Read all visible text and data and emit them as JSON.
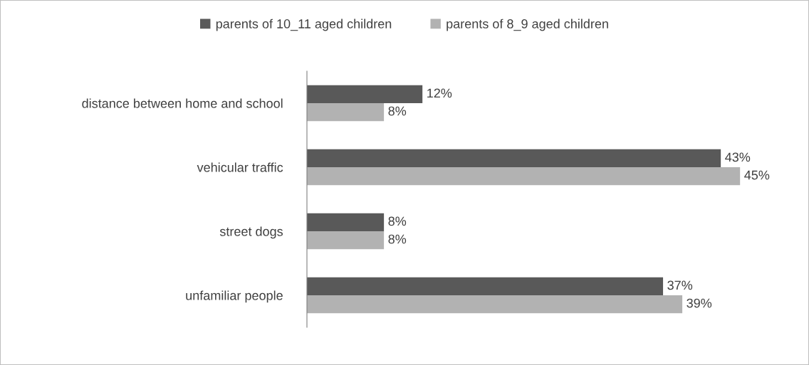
{
  "chart_data": {
    "type": "bar",
    "orientation": "horizontal",
    "categories": [
      "distance between home and school",
      "vehicular traffic",
      "street dogs",
      "unfamiliar people"
    ],
    "series": [
      {
        "name": "parents of 10_11 aged children",
        "color": "#595959",
        "values": [
          12,
          43,
          8,
          37
        ],
        "value_labels": [
          "12%",
          "43%",
          "8%",
          "37%"
        ]
      },
      {
        "name": "parents of 8_9 aged children",
        "color": "#b2b2b2",
        "values": [
          8,
          45,
          8,
          39
        ],
        "value_labels": [
          "8%",
          "45%",
          "8%",
          "39%"
        ]
      }
    ],
    "legend": "top",
    "grid": false
  }
}
